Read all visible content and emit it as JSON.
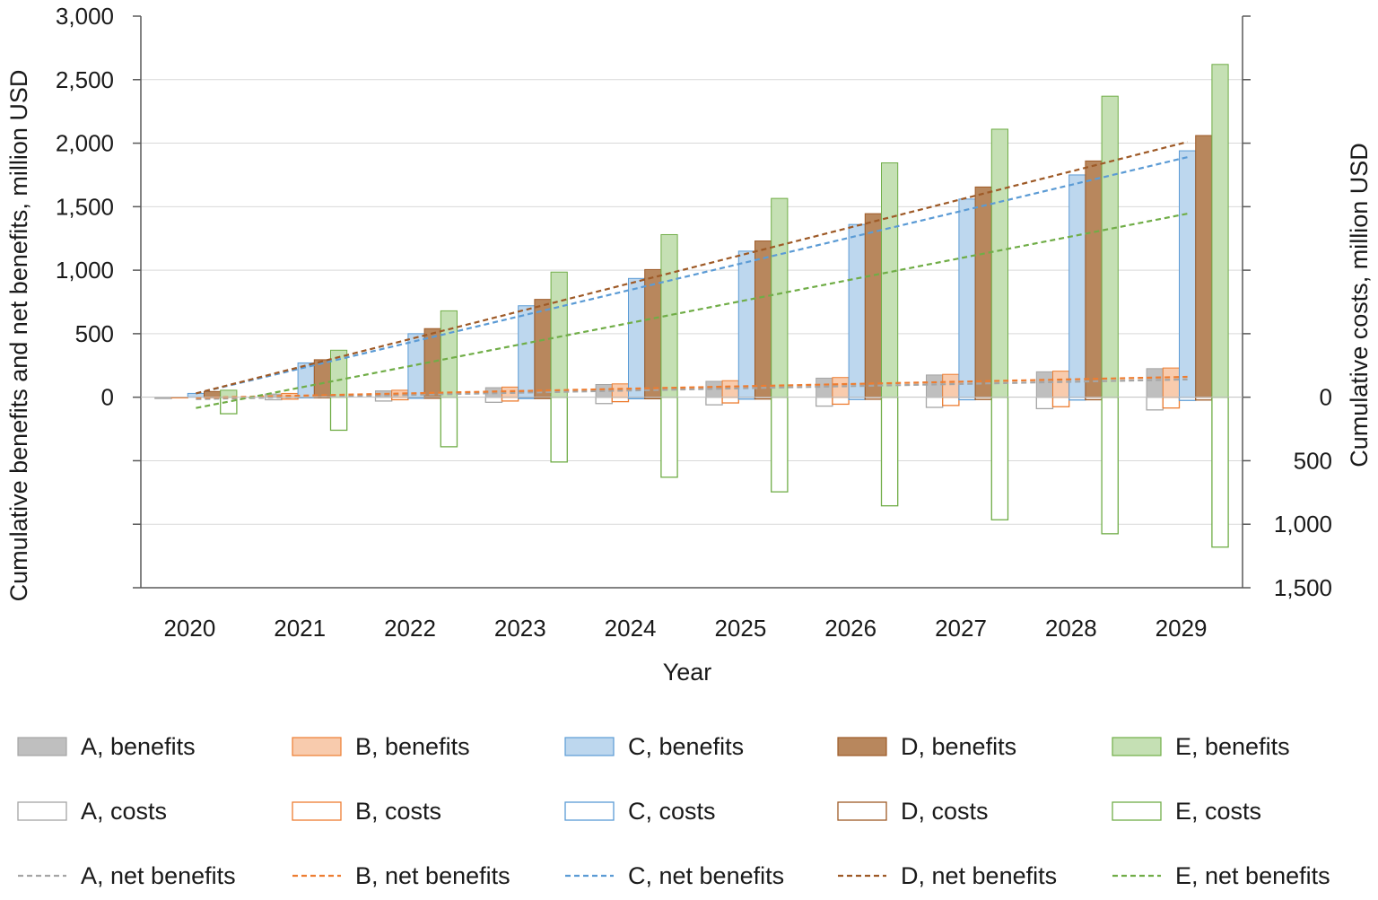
{
  "chart_data": {
    "type": "bar",
    "title": "",
    "xlabel": "Year",
    "ylabel": "Cumulative benefits and net benefits, million USD",
    "y2label": "Cumulative costs, million USD",
    "ylim": [
      -1500,
      3000
    ],
    "yticks": [
      {
        "value": 3000,
        "label": "3,000"
      },
      {
        "value": 2500,
        "label": "2,500"
      },
      {
        "value": 2000,
        "label": "2,000"
      },
      {
        "value": 1500,
        "label": "1,500"
      },
      {
        "value": 1000,
        "label": "1,000"
      },
      {
        "value": 500,
        "label": "500"
      },
      {
        "value": 0,
        "label": "0"
      }
    ],
    "y2ticks": [
      {
        "value": 0,
        "label": "0"
      },
      {
        "value": -500,
        "label": "500"
      },
      {
        "value": -1000,
        "label": "1,000"
      },
      {
        "value": -1500,
        "label": "1,500"
      }
    ],
    "categories": [
      "2020",
      "2021",
      "2022",
      "2023",
      "2024",
      "2025",
      "2026",
      "2027",
      "2028",
      "2029"
    ],
    "series": [
      {
        "name": "A",
        "color": "#a5a5a5",
        "fill": "#bfbfbf",
        "benefits": [
          0,
          25,
          50,
          75,
          100,
          125,
          150,
          175,
          200,
          225
        ],
        "costs": [
          10,
          20,
          30,
          40,
          50,
          60,
          70,
          80,
          90,
          100
        ],
        "net_trend": [
          -15,
          140
        ]
      },
      {
        "name": "B",
        "color": "#ed7d31",
        "fill": "#f8cbad",
        "benefits": [
          0,
          30,
          55,
          80,
          105,
          130,
          155,
          180,
          205,
          230
        ],
        "costs": [
          5,
          15,
          20,
          30,
          35,
          45,
          55,
          65,
          75,
          85
        ],
        "net_trend": [
          -5,
          160
        ]
      },
      {
        "name": "C",
        "color": "#5b9bd5",
        "fill": "#bdd7ee",
        "benefits": [
          30,
          270,
          500,
          720,
          935,
          1150,
          1360,
          1560,
          1750,
          1940
        ],
        "costs": [
          0,
          5,
          8,
          10,
          12,
          15,
          18,
          20,
          22,
          25
        ],
        "net_trend": [
          30,
          1890
        ]
      },
      {
        "name": "D",
        "color": "#9e5a27",
        "fill": "#b8875d",
        "benefits": [
          45,
          295,
          540,
          770,
          1005,
          1230,
          1445,
          1655,
          1860,
          2060
        ],
        "costs": [
          2,
          5,
          8,
          10,
          12,
          14,
          16,
          18,
          20,
          22
        ],
        "net_trend": [
          30,
          2010
        ]
      },
      {
        "name": "E",
        "color": "#70ad47",
        "fill": "#c5e0b4",
        "benefits": [
          55,
          370,
          680,
          985,
          1280,
          1565,
          1845,
          2110,
          2370,
          2620
        ],
        "costs": [
          130,
          260,
          390,
          510,
          630,
          745,
          855,
          965,
          1075,
          1180
        ],
        "net_trend": [
          -85,
          1445
        ]
      }
    ],
    "legend_rows": [
      [
        {
          "kind": "benefits",
          "series": 0,
          "label": "A, benefits"
        },
        {
          "kind": "benefits",
          "series": 1,
          "label": "B, benefits"
        },
        {
          "kind": "benefits",
          "series": 2,
          "label": "C, benefits"
        },
        {
          "kind": "benefits",
          "series": 3,
          "label": "D, benefits"
        },
        {
          "kind": "benefits",
          "series": 4,
          "label": "E, benefits"
        }
      ],
      [
        {
          "kind": "costs",
          "series": 0,
          "label": "A, costs"
        },
        {
          "kind": "costs",
          "series": 1,
          "label": "B, costs"
        },
        {
          "kind": "costs",
          "series": 2,
          "label": "C, costs"
        },
        {
          "kind": "costs",
          "series": 3,
          "label": "D, costs"
        },
        {
          "kind": "costs",
          "series": 4,
          "label": "E, costs"
        }
      ],
      [
        {
          "kind": "net",
          "series": 0,
          "label": "A, net benefits"
        },
        {
          "kind": "net",
          "series": 1,
          "label": "B, net benefits"
        },
        {
          "kind": "net",
          "series": 2,
          "label": "C, net benefits"
        },
        {
          "kind": "net",
          "series": 3,
          "label": "D, net benefits"
        },
        {
          "kind": "net",
          "series": 4,
          "label": "E, net benefits"
        }
      ]
    ],
    "legend_position": "bottom",
    "grid": true
  }
}
